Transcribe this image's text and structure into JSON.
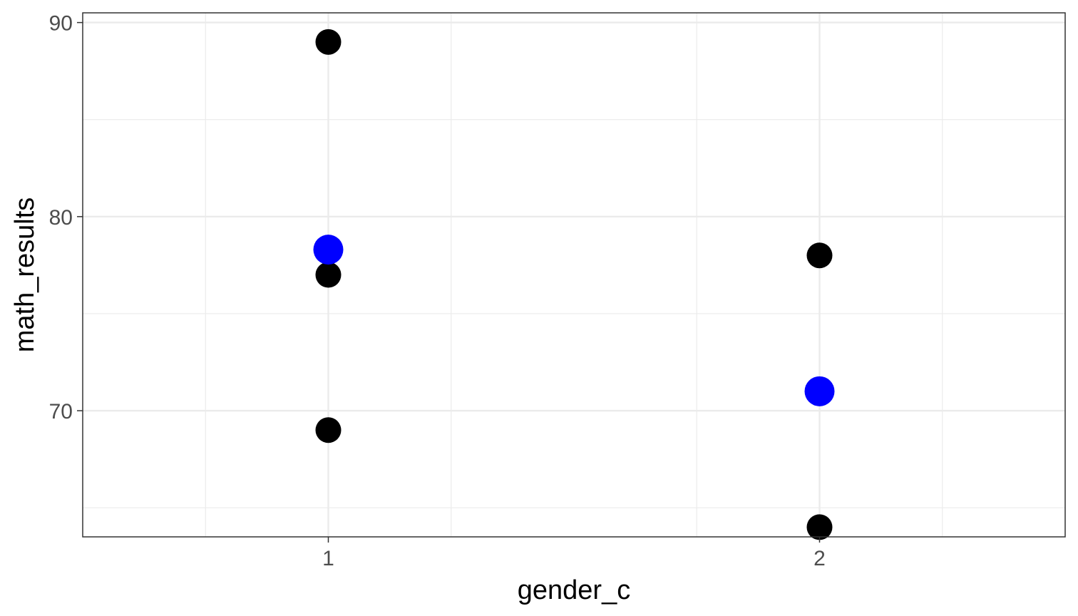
{
  "chart_data": {
    "type": "scatter",
    "title": "",
    "xlabel": "gender_c",
    "ylabel": "math_results",
    "x_categories": [
      "1",
      "2"
    ],
    "xlim": [
      0.5,
      2.5
    ],
    "ylim": [
      63.5,
      90.5
    ],
    "y_ticks": [
      70,
      80,
      90
    ],
    "grid": true,
    "points": [
      {
        "x": 1,
        "y": 89,
        "color": "#000000"
      },
      {
        "x": 1,
        "y": 77,
        "color": "#000000"
      },
      {
        "x": 1,
        "y": 69,
        "color": "#000000"
      },
      {
        "x": 2,
        "y": 78,
        "color": "#000000"
      },
      {
        "x": 2,
        "y": 64,
        "color": "#000000"
      },
      {
        "x": 1,
        "y": 78.3,
        "color": "#0000ff"
      },
      {
        "x": 2,
        "y": 71,
        "color": "#0000ff"
      }
    ]
  }
}
